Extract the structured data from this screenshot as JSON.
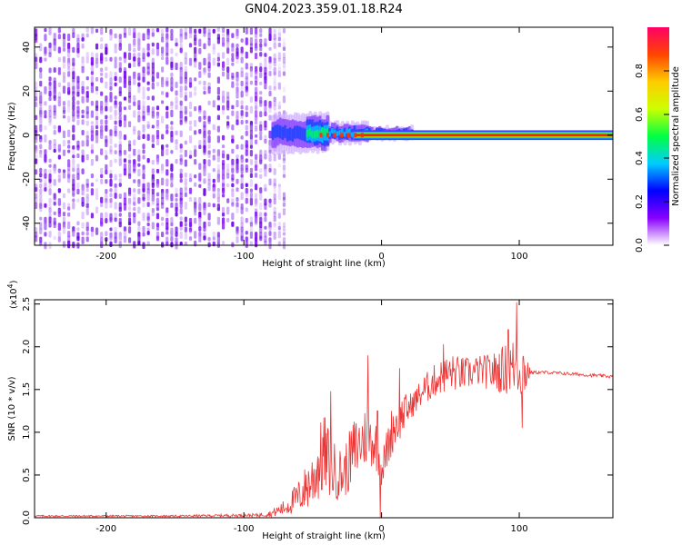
{
  "title": "GN04.2023.359.01.18.R24",
  "chart_data": [
    {
      "type": "heatmap",
      "xlabel": "Height of straight line (km)",
      "ylabel": "Frequency (Hz)",
      "xlim": [
        -252,
        168
      ],
      "ylim": [
        -50,
        49
      ],
      "x_ticks": [
        "-200",
        "-100",
        "0",
        "100"
      ],
      "x_tick_values": [
        -200,
        -100,
        0,
        100
      ],
      "y_ticks": [
        "-40",
        "-20",
        "0",
        "20",
        "40"
      ],
      "y_tick_values": [
        -40,
        -20,
        0,
        20,
        40
      ],
      "noise_region_km": [
        -252,
        -70
      ],
      "transition_region_km": [
        -80,
        20
      ],
      "signal_frequency_hz": 0,
      "colorbar": {
        "label": "Normalized spectral amplitude",
        "range": [
          0.0,
          1.0
        ],
        "ticks": [
          "0.0",
          "0.2",
          "0.4",
          "0.6",
          "0.8"
        ],
        "tick_values": [
          0.0,
          0.2,
          0.4,
          0.6,
          0.8
        ],
        "colors": [
          "#ffffff",
          "#8800ff",
          "#0000ff",
          "#00ccff",
          "#00ff44",
          "#ccff00",
          "#ffcc00",
          "#ff4400",
          "#ff0066"
        ]
      }
    },
    {
      "type": "line",
      "xlabel": "Height of straight line (km)",
      "ylabel": "SNR (10 * v/v)",
      "multiplier": "(x10",
      "multiplier_exp": "4",
      "multiplier_close": ")",
      "xlim": [
        -252,
        168
      ],
      "ylim": [
        0,
        2.55
      ],
      "x_ticks": [
        "-200",
        "-100",
        "0",
        "100"
      ],
      "x_tick_values": [
        -200,
        -100,
        0,
        100
      ],
      "y_ticks": [
        "0.0",
        "0.5",
        "1.0",
        "1.5",
        "2.0",
        "2.5"
      ],
      "y_tick_values": [
        0.0,
        0.5,
        1.0,
        1.5,
        2.0,
        2.5
      ],
      "color": "#ee3333",
      "envelope": {
        "x": [
          -252,
          -150,
          -90,
          -80,
          -70,
          -60,
          -50,
          -42,
          -35,
          -28,
          -20,
          -10,
          -3,
          0,
          8,
          15,
          22,
          30,
          40,
          50,
          60,
          70,
          80,
          90,
          100,
          105,
          108,
          120,
          140,
          168
        ],
        "y": [
          0.02,
          0.02,
          0.03,
          0.05,
          0.12,
          0.25,
          0.45,
          0.75,
          0.55,
          0.5,
          0.78,
          0.98,
          0.82,
          0.55,
          1.05,
          1.2,
          1.32,
          1.48,
          1.62,
          1.7,
          1.68,
          1.72,
          1.7,
          1.74,
          1.78,
          1.72,
          1.7,
          1.7,
          1.68,
          1.65
        ],
        "amp": [
          0.01,
          0.01,
          0.02,
          0.04,
          0.1,
          0.2,
          0.35,
          0.5,
          0.35,
          0.3,
          0.4,
          0.35,
          0.3,
          0.2,
          0.3,
          0.25,
          0.15,
          0.18,
          0.2,
          0.22,
          0.2,
          0.18,
          0.22,
          0.3,
          0.4,
          0.3,
          0.02,
          0.02,
          0.02,
          0.02
        ]
      },
      "spikes": [
        {
          "x": -37,
          "y": 1.48
        },
        {
          "x": -10,
          "y": 1.9
        },
        {
          "x": -3,
          "y": 1.25
        },
        {
          "x": -1,
          "y": 0.0
        },
        {
          "x": 13,
          "y": 1.75
        },
        {
          "x": 45,
          "y": 2.03
        },
        {
          "x": 92,
          "y": 2.2
        },
        {
          "x": 98,
          "y": 2.52
        },
        {
          "x": 102,
          "y": 1.05
        }
      ]
    }
  ]
}
